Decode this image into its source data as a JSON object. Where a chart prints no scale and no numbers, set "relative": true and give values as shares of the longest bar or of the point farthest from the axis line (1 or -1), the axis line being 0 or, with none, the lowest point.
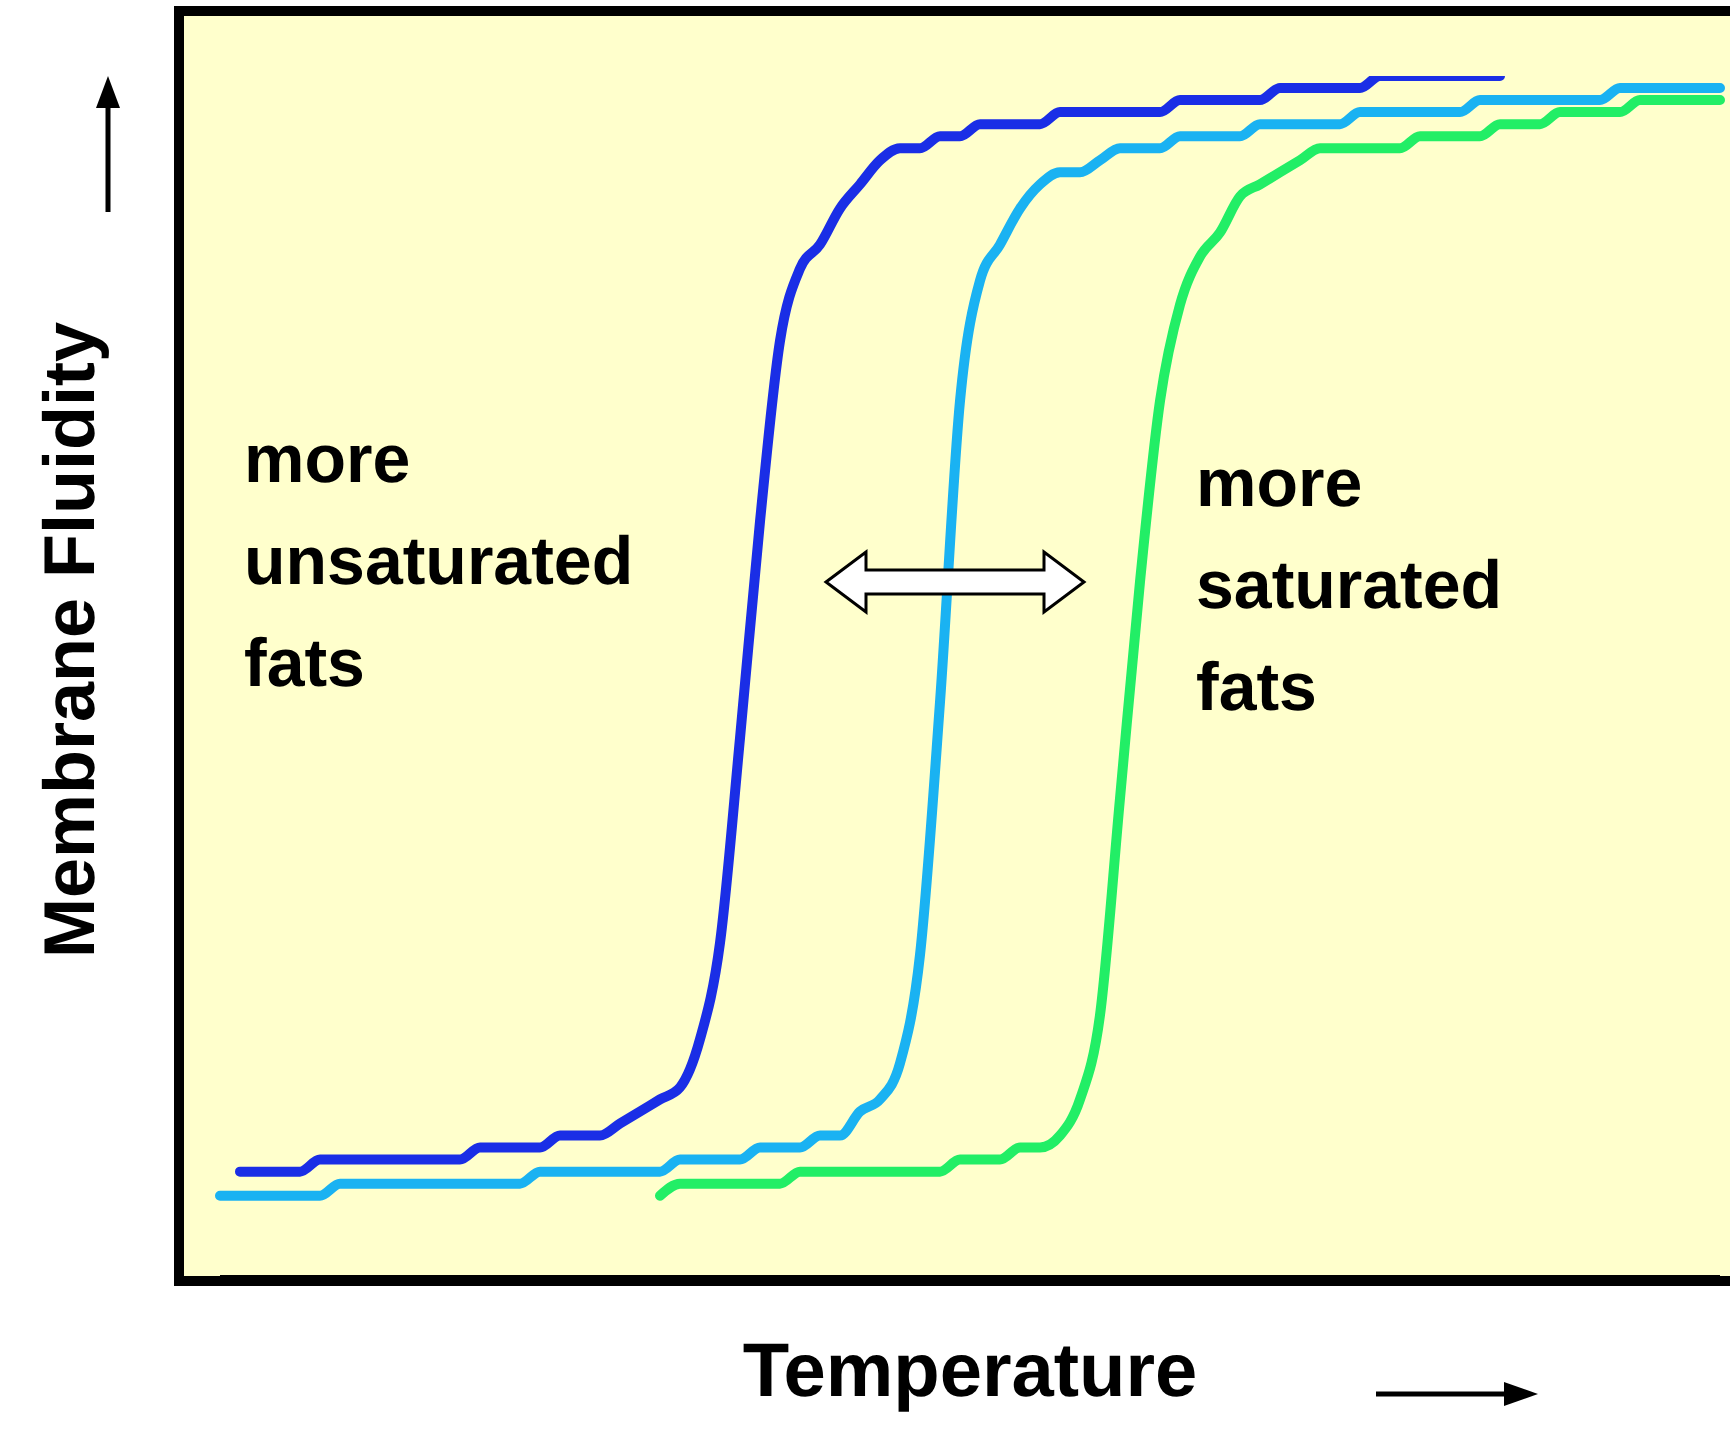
{
  "chart_data": {
    "type": "line",
    "relative": true,
    "xlabel": "Temperature",
    "ylabel": "Membrane Fluidity",
    "marker": "none",
    "annotations": [
      "more unsaturated fats",
      "more saturated fats"
    ],
    "categories": [
      null,
      null,
      null,
      null,
      null,
      null,
      null,
      null,
      null,
      null,
      null,
      null,
      null,
      null,
      null,
      null,
      null,
      null,
      null,
      null,
      null,
      null,
      null,
      null,
      null,
      null,
      null,
      null,
      null,
      null,
      null,
      null,
      null,
      null,
      null,
      null,
      null,
      null,
      null,
      null,
      null,
      null,
      null,
      null,
      null,
      null,
      null,
      null,
      null,
      null,
      null,
      null,
      null,
      null,
      null,
      null,
      null,
      null,
      null,
      null,
      null,
      null,
      null,
      null,
      null,
      null,
      null,
      null,
      null,
      null,
      null,
      null,
      null,
      null,
      null,
      null
    ],
    "series": [
      {
        "color": "#1a2ee6",
        "values": [
          null,
          0.09,
          0.09,
          0.09,
          0.09,
          0.1,
          0.1,
          0.1,
          0.1,
          0.1,
          0.1,
          0.1,
          0.1,
          0.11,
          0.11,
          0.11,
          0.11,
          0.12,
          0.12,
          0.12,
          0.13,
          0.14,
          0.15,
          0.16,
          0.2,
          0.28,
          0.45,
          0.63,
          0.78,
          0.84,
          0.86,
          0.89,
          0.91,
          0.93,
          0.94,
          0.94,
          0.95,
          0.95,
          0.96,
          0.96,
          0.96,
          0.96,
          0.97,
          0.97,
          0.97,
          0.97,
          0.97,
          0.97,
          0.98,
          0.98,
          0.98,
          0.98,
          0.98,
          0.99,
          0.99,
          0.99,
          0.99,
          0.99,
          1,
          1,
          1,
          1,
          1,
          1,
          1,
          null,
          null,
          null,
          null,
          null,
          null,
          null,
          null,
          null,
          null,
          null
        ]
      },
      {
        "color": "#1ab2f2",
        "values": [
          0.07,
          0.07,
          0.07,
          0.07,
          0.07,
          0.07,
          0.08,
          0.08,
          0.08,
          0.08,
          0.08,
          0.08,
          0.08,
          0.08,
          0.08,
          0.08,
          0.09,
          0.09,
          0.09,
          0.09,
          0.09,
          0.09,
          0.09,
          0.1,
          0.1,
          0.1,
          0.1,
          0.11,
          0.11,
          0.11,
          0.12,
          0.12,
          0.14,
          0.15,
          0.18,
          0.27,
          0.48,
          0.73,
          0.83,
          0.86,
          0.89,
          0.91,
          0.92,
          0.92,
          0.93,
          0.94,
          0.94,
          0.94,
          0.95,
          0.95,
          0.95,
          0.95,
          0.96,
          0.96,
          0.96,
          0.96,
          0.96,
          0.97,
          0.97,
          0.97,
          0.97,
          0.97,
          0.97,
          0.98,
          0.98,
          0.98,
          0.98,
          0.98,
          0.98,
          0.98,
          0.99,
          0.99,
          0.99,
          0.99,
          0.99,
          0.99
        ]
      },
      {
        "color": "#22ee66",
        "values": [
          null,
          null,
          null,
          null,
          null,
          null,
          null,
          null,
          null,
          null,
          null,
          null,
          null,
          null,
          null,
          null,
          null,
          null,
          null,
          null,
          null,
          null,
          0.07,
          0.08,
          0.08,
          0.08,
          0.08,
          0.08,
          0.08,
          0.09,
          0.09,
          0.09,
          0.09,
          0.09,
          0.09,
          0.09,
          0.09,
          0.1,
          0.1,
          0.1,
          0.11,
          0.11,
          0.12,
          0.15,
          0.22,
          0.4,
          0.58,
          0.73,
          0.81,
          0.85,
          0.87,
          0.9,
          0.91,
          0.92,
          0.93,
          0.94,
          0.94,
          0.94,
          0.94,
          0.94,
          0.95,
          0.95,
          0.95,
          0.95,
          0.96,
          0.96,
          0.96,
          0.97,
          0.97,
          0.97,
          0.97,
          0.98,
          0.98,
          0.98,
          0.98,
          0.98
        ]
      }
    ]
  }
}
